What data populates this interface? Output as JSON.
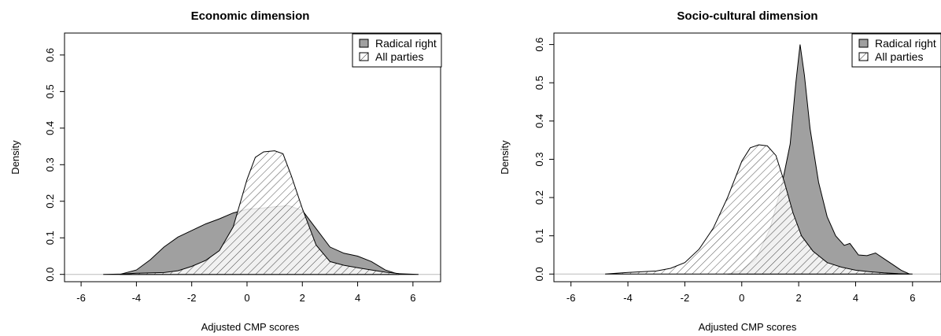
{
  "chart_data": [
    {
      "type": "area",
      "title": "Economic dimension",
      "xlabel": "Adjusted CMP scores",
      "ylabel": "Density",
      "xlim": [
        -6.6,
        7
      ],
      "ylim": [
        -0.02,
        0.66
      ],
      "xticks": [
        "-6",
        "-4",
        "-2",
        "0",
        "2",
        "4",
        "6"
      ],
      "yticks": [
        "0.0",
        "0.1",
        "0.2",
        "0.3",
        "0.4",
        "0.5",
        "0.6"
      ],
      "legend_position": "top-right",
      "grid": false,
      "series": [
        {
          "name": "Radical right",
          "fill": "solid-gray",
          "x": [
            -4.6,
            -4.0,
            -3.5,
            -3.0,
            -2.5,
            -2.0,
            -1.5,
            -1.0,
            -0.5,
            0.0,
            0.5,
            1.0,
            1.5,
            2.0,
            2.5,
            3.0,
            3.5,
            4.0,
            4.5,
            5.0,
            5.5
          ],
          "y": [
            0.0,
            0.012,
            0.04,
            0.075,
            0.102,
            0.12,
            0.138,
            0.152,
            0.168,
            0.178,
            0.181,
            0.185,
            0.188,
            0.175,
            0.125,
            0.075,
            0.058,
            0.05,
            0.035,
            0.012,
            0.0
          ]
        },
        {
          "name": "All parties",
          "fill": "hatched",
          "x": [
            -5.2,
            -4.5,
            -4.0,
            -3.0,
            -2.5,
            -2.0,
            -1.5,
            -1.0,
            -0.5,
            0.0,
            0.3,
            0.6,
            1.0,
            1.3,
            1.6,
            2.0,
            2.5,
            3.0,
            3.5,
            4.0,
            4.5,
            5.0,
            5.5,
            6.2
          ],
          "y": [
            0.0,
            0.001,
            0.003,
            0.005,
            0.01,
            0.022,
            0.038,
            0.065,
            0.13,
            0.26,
            0.32,
            0.335,
            0.338,
            0.33,
            0.27,
            0.18,
            0.08,
            0.035,
            0.025,
            0.018,
            0.012,
            0.006,
            0.002,
            0.0
          ]
        }
      ]
    },
    {
      "type": "area",
      "title": "Socio-cultural dimension",
      "xlabel": "Adjusted CMP scores",
      "ylabel": "Density",
      "xlim": [
        -6.6,
        7
      ],
      "ylim": [
        -0.02,
        0.63
      ],
      "xticks": [
        "-6",
        "-4",
        "-2",
        "0",
        "2",
        "4",
        "6"
      ],
      "yticks": [
        "0.0",
        "0.1",
        "0.2",
        "0.3",
        "0.4",
        "0.5",
        "0.6"
      ],
      "legend_position": "top-right",
      "grid": false,
      "series": [
        {
          "name": "Radical right",
          "fill": "solid-gray",
          "x": [
            -0.5,
            0.0,
            0.5,
            1.0,
            1.4,
            1.7,
            1.9,
            2.05,
            2.2,
            2.4,
            2.7,
            3.0,
            3.3,
            3.6,
            3.8,
            4.1,
            4.4,
            4.7,
            5.0,
            5.3,
            5.6,
            5.9
          ],
          "y": [
            0.0,
            0.01,
            0.04,
            0.12,
            0.23,
            0.34,
            0.5,
            0.6,
            0.52,
            0.38,
            0.24,
            0.15,
            0.1,
            0.075,
            0.08,
            0.05,
            0.048,
            0.055,
            0.04,
            0.025,
            0.01,
            0.0
          ]
        },
        {
          "name": "All parties",
          "fill": "hatched",
          "x": [
            -4.8,
            -4.0,
            -3.0,
            -2.5,
            -2.0,
            -1.5,
            -1.0,
            -0.5,
            0.0,
            0.3,
            0.6,
            0.9,
            1.2,
            1.5,
            1.8,
            2.1,
            2.5,
            3.0,
            3.5,
            4.0,
            4.5,
            5.0,
            5.5,
            6.0
          ],
          "y": [
            0.0,
            0.004,
            0.008,
            0.015,
            0.03,
            0.065,
            0.12,
            0.2,
            0.295,
            0.33,
            0.338,
            0.335,
            0.31,
            0.24,
            0.16,
            0.1,
            0.06,
            0.03,
            0.018,
            0.01,
            0.006,
            0.003,
            0.001,
            0.0
          ]
        }
      ]
    }
  ]
}
